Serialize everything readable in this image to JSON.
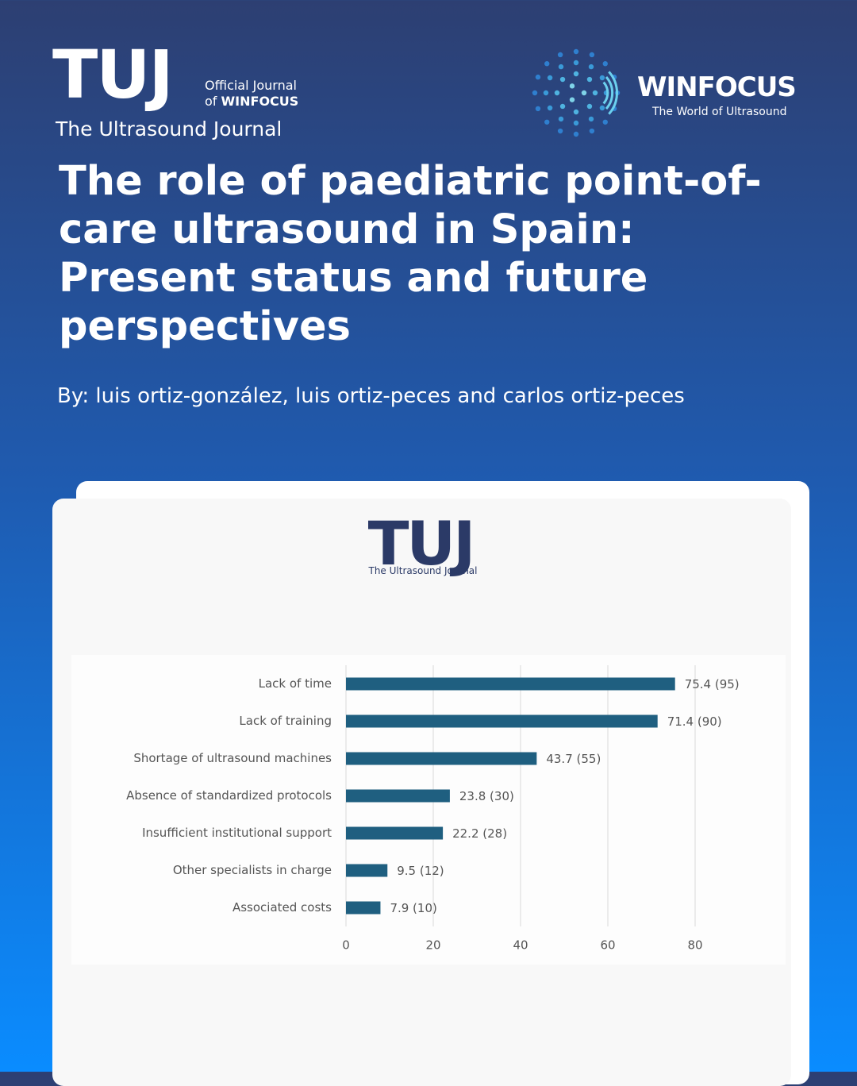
{
  "header": {
    "journal_logo": "TUJ",
    "official_line1": "Official Journal",
    "official_of": "of",
    "official_org": "WINFOCUS",
    "journal_name": "The Ultrasound Journal",
    "partner_name": "WINFOCUS",
    "partner_tagline": "The World of Ultrasound"
  },
  "article": {
    "title": "The role of paediatric point-of-care ultrasound in Spain: Present status and future perspectives",
    "authors": "By: luis ortiz-gonzález, luis ortiz-peces and carlos ortiz-peces"
  },
  "card": {
    "logo": "TUJ",
    "logo_subtitle": "The Ultrasound Journal"
  },
  "chart_data": {
    "type": "hbar",
    "categories": [
      "Lack of time",
      "Lack of training",
      "Shortage of ultrasound machines",
      "Absence of standardized protocols",
      "Insufficient institutional support",
      "Other specialists in charge",
      "Associated costs"
    ],
    "values": [
      75.4,
      71.4,
      43.7,
      23.8,
      22.2,
      9.5,
      7.9
    ],
    "value_labels": [
      "75.4 (95)",
      "71.4 (90)",
      "43.7 (55)",
      "23.8 (30)",
      "22.2 (28)",
      "9.5 (12)",
      "7.9 (10)"
    ],
    "color": "#1f5f80",
    "xlim": [
      0,
      80
    ],
    "xticks": [
      0,
      20,
      40,
      60,
      80
    ],
    "grid": true
  }
}
